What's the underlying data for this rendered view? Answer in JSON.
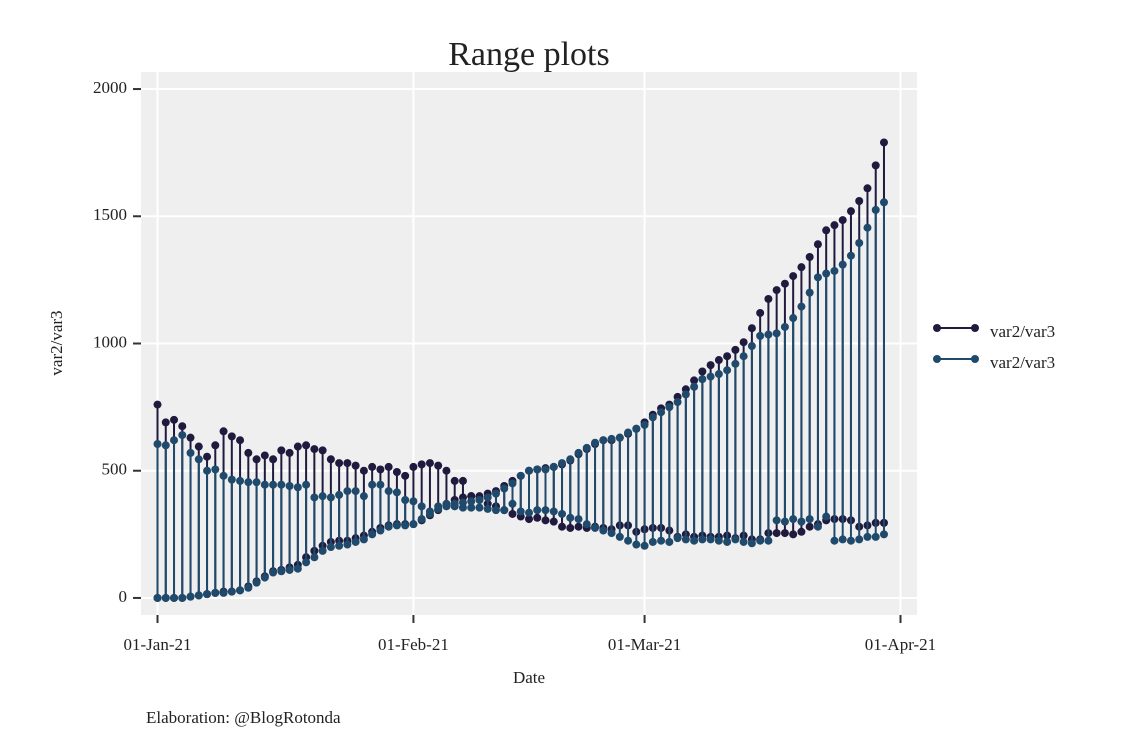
{
  "chart_data": {
    "type": "range",
    "title": "Range plots",
    "x_label": "Date",
    "y_label": "var2/var3",
    "caption": "Elaboration: @BlogRotonda",
    "x": [
      "2021-01-01",
      "2021-01-02",
      "2021-01-03",
      "2021-01-04",
      "2021-01-05",
      "2021-01-06",
      "2021-01-07",
      "2021-01-08",
      "2021-01-09",
      "2021-01-10",
      "2021-01-11",
      "2021-01-12",
      "2021-01-13",
      "2021-01-14",
      "2021-01-15",
      "2021-01-16",
      "2021-01-17",
      "2021-01-18",
      "2021-01-19",
      "2021-01-20",
      "2021-01-21",
      "2021-01-22",
      "2021-01-23",
      "2021-01-24",
      "2021-01-25",
      "2021-01-26",
      "2021-01-27",
      "2021-01-28",
      "2021-01-29",
      "2021-01-30",
      "2021-01-31",
      "2021-02-01",
      "2021-02-02",
      "2021-02-03",
      "2021-02-04",
      "2021-02-05",
      "2021-02-06",
      "2021-02-07",
      "2021-02-08",
      "2021-02-09",
      "2021-02-10",
      "2021-02-11",
      "2021-02-12",
      "2021-02-13",
      "2021-02-14",
      "2021-02-15",
      "2021-02-16",
      "2021-02-17",
      "2021-02-18",
      "2021-02-19",
      "2021-02-20",
      "2021-02-21",
      "2021-02-22",
      "2021-02-23",
      "2021-02-24",
      "2021-02-25",
      "2021-02-26",
      "2021-02-27",
      "2021-02-28",
      "2021-03-01",
      "2021-03-02",
      "2021-03-03",
      "2021-03-04",
      "2021-03-05",
      "2021-03-06",
      "2021-03-07",
      "2021-03-08",
      "2021-03-09",
      "2021-03-10",
      "2021-03-11",
      "2021-03-12",
      "2021-03-13",
      "2021-03-14",
      "2021-03-15",
      "2021-03-16",
      "2021-03-17",
      "2021-03-18",
      "2021-03-19",
      "2021-03-20",
      "2021-03-21",
      "2021-03-22",
      "2021-03-23",
      "2021-03-24",
      "2021-03-25",
      "2021-03-26",
      "2021-03-27",
      "2021-03-28",
      "2021-03-29",
      "2021-03-30"
    ],
    "series": [
      {
        "name": "var2/var3",
        "color": "#201a3e",
        "start_values": [
          760,
          690,
          700,
          675,
          630,
          595,
          555,
          600,
          655,
          635,
          620,
          570,
          545,
          560,
          545,
          580,
          570,
          595,
          600,
          585,
          580,
          545,
          530,
          530,
          520,
          500,
          515,
          505,
          515,
          495,
          480,
          515,
          525,
          530,
          520,
          500,
          460,
          460,
          400,
          390,
          370,
          360,
          345,
          330,
          320,
          310,
          315,
          305,
          300,
          280,
          275,
          280,
          275,
          280,
          275,
          270,
          285,
          285,
          260,
          270,
          275,
          275,
          265,
          240,
          250,
          240,
          245,
          240,
          240,
          245,
          235,
          245,
          230,
          230,
          255,
          255,
          255,
          250,
          260,
          280,
          290,
          305,
          310,
          310,
          305,
          280,
          285,
          295,
          295
        ],
        "end_values": [
          0,
          0,
          0,
          0,
          5,
          10,
          15,
          20,
          25,
          25,
          30,
          45,
          65,
          85,
          105,
          110,
          120,
          130,
          160,
          185,
          205,
          220,
          225,
          225,
          235,
          245,
          260,
          275,
          285,
          290,
          290,
          290,
          305,
          325,
          345,
          365,
          385,
          395,
          400,
          400,
          410,
          420,
          440,
          460,
          480,
          500,
          505,
          510,
          515,
          525,
          540,
          565,
          585,
          605,
          620,
          620,
          630,
          645,
          665,
          690,
          720,
          745,
          760,
          790,
          820,
          855,
          890,
          915,
          935,
          950,
          975,
          1005,
          1060,
          1120,
          1175,
          1210,
          1235,
          1265,
          1300,
          1340,
          1390,
          1445,
          1465,
          1485,
          1520,
          1560,
          1610,
          1700,
          1790
        ]
      },
      {
        "name": "var2/var3",
        "color": "#1f4a6c",
        "start_values": [
          605,
          600,
          620,
          640,
          570,
          545,
          500,
          505,
          480,
          465,
          460,
          455,
          455,
          445,
          445,
          445,
          440,
          435,
          445,
          395,
          400,
          395,
          405,
          420,
          420,
          400,
          445,
          445,
          420,
          415,
          385,
          380,
          360,
          340,
          360,
          370,
          360,
          355,
          355,
          355,
          350,
          345,
          345,
          370,
          340,
          335,
          345,
          345,
          340,
          330,
          315,
          310,
          290,
          275,
          265,
          255,
          240,
          225,
          210,
          205,
          220,
          225,
          220,
          235,
          230,
          225,
          230,
          230,
          225,
          220,
          230,
          220,
          215,
          225,
          225,
          305,
          300,
          310,
          300,
          310,
          280,
          320,
          225,
          230,
          225,
          230,
          240,
          240,
          250
        ],
        "end_values": [
          0,
          0,
          0,
          0,
          5,
          10,
          15,
          20,
          20,
          25,
          30,
          40,
          60,
          80,
          100,
          105,
          110,
          115,
          140,
          160,
          185,
          200,
          205,
          210,
          220,
          230,
          250,
          265,
          280,
          285,
          285,
          290,
          310,
          330,
          350,
          360,
          370,
          375,
          380,
          385,
          395,
          410,
          430,
          450,
          480,
          500,
          505,
          505,
          515,
          530,
          545,
          570,
          590,
          610,
          620,
          625,
          630,
          650,
          665,
          680,
          710,
          730,
          750,
          770,
          800,
          830,
          860,
          870,
          880,
          895,
          920,
          950,
          990,
          1030,
          1035,
          1040,
          1065,
          1100,
          1145,
          1200,
          1260,
          1275,
          1285,
          1310,
          1345,
          1395,
          1455,
          1525,
          1555
        ]
      }
    ],
    "xlim": [
      "2020-12-30",
      "2021-04-03"
    ],
    "xticks": [
      {
        "value": "2021-01-01",
        "label": "01-Jan-21"
      },
      {
        "value": "2021-02-01",
        "label": "01-Feb-21"
      },
      {
        "value": "2021-03-01",
        "label": "01-Mar-21"
      },
      {
        "value": "2021-04-01",
        "label": "01-Apr-21"
      }
    ],
    "ylim": [
      -67,
      2067
    ],
    "yticks": [
      0,
      500,
      1000,
      1500,
      2000
    ],
    "grid": true,
    "legend_position": "right"
  }
}
